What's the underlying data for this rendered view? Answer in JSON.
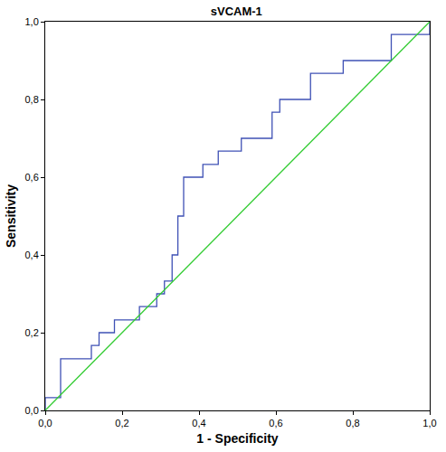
{
  "chart_data": {
    "type": "line",
    "title": "sVCAM-1",
    "x_label": "1 - Specificity",
    "y_label": "Sensitivity",
    "xlim": [
      0,
      1
    ],
    "ylim": [
      0,
      1
    ],
    "xticks": [
      {
        "value": 0,
        "label": "0,0"
      },
      {
        "value": 0.2,
        "label": "0,2"
      },
      {
        "value": 0.4,
        "label": "0,4"
      },
      {
        "value": 0.6,
        "label": "0,6"
      },
      {
        "value": 0.8,
        "label": "0,8"
      },
      {
        "value": 1,
        "label": "1,0"
      }
    ],
    "yticks": [
      {
        "value": 0,
        "label": "0,0"
      },
      {
        "value": 0.2,
        "label": "0,2"
      },
      {
        "value": 0.4,
        "label": "0,4"
      },
      {
        "value": 0.6,
        "label": "0,6"
      },
      {
        "value": 0.8,
        "label": "0,8"
      },
      {
        "value": 1,
        "label": "1,0"
      }
    ],
    "grid": false,
    "series": [
      {
        "color": "#3f51b5",
        "line_style": "step",
        "x": [
          0,
          0,
          0.04,
          0.12,
          0.14,
          0.18,
          0.245,
          0.29,
          0.31,
          0.33,
          0.345,
          0.36,
          0.41,
          0.45,
          0.51,
          0.59,
          0.61,
          0.69,
          0.775,
          0.9,
          1
        ],
        "values": [
          0,
          0.033,
          0.133,
          0.167,
          0.2,
          0.233,
          0.267,
          0.3,
          0.333,
          0.4,
          0.5,
          0.6,
          0.633,
          0.667,
          0.7,
          0.767,
          0.8,
          0.867,
          0.9,
          0.967,
          1
        ]
      },
      {
        "color": "#33cc33",
        "line_style": "solid",
        "x": [
          0,
          1
        ],
        "values": [
          0,
          1
        ]
      }
    ]
  }
}
